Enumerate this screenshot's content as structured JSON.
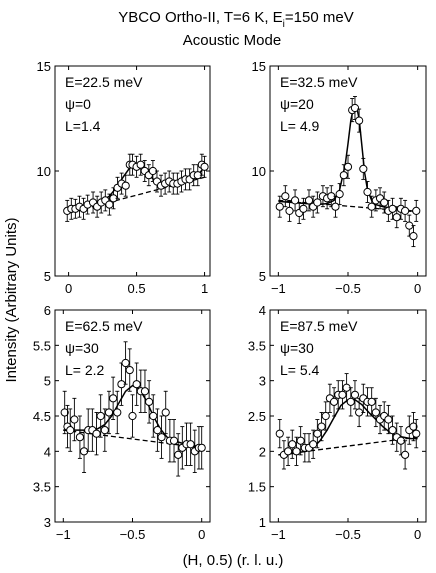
{
  "figure": {
    "title_line1_main": "YBCO Ortho-II, T=6 K, E",
    "title_line1_sub": "i",
    "title_line1_tail": "=150 meV",
    "title_line2": "Acoustic Mode",
    "ylabel": "Intensity (Arbitrary Units)",
    "xlabel": "(H, 0.5) (r. l. u.)"
  },
  "chart_data": [
    {
      "type": "scatter",
      "annotation": [
        "E=22.5 meV",
        "ψ=0",
        "L=1.4"
      ],
      "xlim": [
        -0.1,
        1.04
      ],
      "ylim": [
        5,
        15
      ],
      "xticks": [
        0,
        0.5,
        1
      ],
      "xtick_labels": [
        "0",
        "0.5",
        "1"
      ],
      "yticks": [
        5,
        10,
        15
      ],
      "ytick_labels": [
        "5",
        "10",
        "15"
      ],
      "x": [
        -0.01,
        0.02,
        0.05,
        0.08,
        0.11,
        0.14,
        0.18,
        0.21,
        0.24,
        0.27,
        0.3,
        0.33,
        0.36,
        0.39,
        0.42,
        0.45,
        0.47,
        0.5,
        0.53,
        0.56,
        0.59,
        0.62,
        0.65,
        0.68,
        0.71,
        0.74,
        0.77,
        0.8,
        0.83,
        0.86,
        0.89,
        0.92,
        0.95,
        0.98,
        1.0
      ],
      "y": [
        8.1,
        8.2,
        8.2,
        8.3,
        8.2,
        8.4,
        8.5,
        8.3,
        8.5,
        8.6,
        8.4,
        8.7,
        9.2,
        9.4,
        9.3,
        10.3,
        10.3,
        10.2,
        10.3,
        10.0,
        9.8,
        10.0,
        9.5,
        9.3,
        9.4,
        9.5,
        9.4,
        9.4,
        9.5,
        9.6,
        9.6,
        9.8,
        9.8,
        10.3,
        10.2
      ],
      "err": [
        0.5,
        0.5,
        0.45,
        0.5,
        0.5,
        0.45,
        0.5,
        0.5,
        0.5,
        0.5,
        0.5,
        0.5,
        0.5,
        0.5,
        0.5,
        0.5,
        0.5,
        0.5,
        0.5,
        0.5,
        0.5,
        0.5,
        0.5,
        0.5,
        0.5,
        0.5,
        0.5,
        0.5,
        0.5,
        0.5,
        0.5,
        0.5,
        0.5,
        0.5,
        0.5
      ],
      "fit": {
        "x": [
          0,
          0.05,
          0.1,
          0.15,
          0.2,
          0.25,
          0.3,
          0.35,
          0.4,
          0.45,
          0.5,
          0.55,
          0.6,
          0.65,
          0.7,
          0.75,
          0.8,
          0.85,
          0.9,
          0.95,
          1.0
        ],
        "y": [
          8.2,
          8.25,
          8.3,
          8.35,
          8.45,
          8.6,
          8.8,
          9.2,
          9.7,
          10.15,
          10.3,
          10.1,
          9.75,
          9.45,
          9.35,
          9.35,
          9.4,
          9.5,
          9.6,
          9.8,
          10.2
        ]
      },
      "background": {
        "x": [
          0,
          1.0
        ],
        "y": [
          8.0,
          9.7
        ]
      }
    },
    {
      "type": "scatter",
      "annotation": [
        "E=32.5 meV",
        "ψ=20",
        "L= 4.9"
      ],
      "xlim": [
        -1.06,
        0.06
      ],
      "ylim": [
        5,
        15
      ],
      "xticks": [
        -1,
        -0.5,
        0
      ],
      "xtick_labels": [
        "−1",
        "−0.5",
        "0"
      ],
      "yticks": [
        5,
        10,
        15
      ],
      "ytick_labels": [
        "5",
        "10",
        "15"
      ],
      "x": [
        -0.99,
        -0.95,
        -0.92,
        -0.88,
        -0.85,
        -0.82,
        -0.78,
        -0.75,
        -0.72,
        -0.68,
        -0.65,
        -0.62,
        -0.59,
        -0.56,
        -0.53,
        -0.5,
        -0.47,
        -0.45,
        -0.42,
        -0.39,
        -0.36,
        -0.33,
        -0.3,
        -0.27,
        -0.24,
        -0.21,
        -0.18,
        -0.15,
        -0.12,
        -0.09,
        -0.06,
        -0.03,
        -0.01
      ],
      "y": [
        8.3,
        8.8,
        8.1,
        8.6,
        8.0,
        8.2,
        8.6,
        8.3,
        8.5,
        8.8,
        8.7,
        8.8,
        8.3,
        8.9,
        9.8,
        10.2,
        12.9,
        13.0,
        12.4,
        10.1,
        9.0,
        8.3,
        8.6,
        8.7,
        8.5,
        8.1,
        8.2,
        7.8,
        8.2,
        8.1,
        7.4,
        6.9,
        8.1
      ],
      "err": [
        0.5,
        0.5,
        0.5,
        0.5,
        0.5,
        0.5,
        0.5,
        0.5,
        0.5,
        0.5,
        0.5,
        0.5,
        0.5,
        0.5,
        0.5,
        0.55,
        0.55,
        0.55,
        0.55,
        0.5,
        0.5,
        0.5,
        0.5,
        0.5,
        0.5,
        0.5,
        0.5,
        0.5,
        0.5,
        0.5,
        0.5,
        0.5,
        0.5
      ],
      "fit": {
        "x": [
          -1.0,
          -0.9,
          -0.8,
          -0.7,
          -0.65,
          -0.6,
          -0.56,
          -0.52,
          -0.5,
          -0.48,
          -0.46,
          -0.44,
          -0.42,
          -0.4,
          -0.38,
          -0.36,
          -0.33,
          -0.3,
          -0.25,
          -0.2,
          -0.1,
          0.0
        ],
        "y": [
          8.55,
          8.5,
          8.45,
          8.42,
          8.45,
          8.6,
          9.1,
          10.3,
          11.3,
          12.4,
          13.05,
          13.1,
          12.5,
          11.2,
          9.9,
          9.1,
          8.6,
          8.4,
          8.3,
          8.25,
          8.15,
          8.05
        ]
      },
      "background": {
        "x": [
          -1.0,
          0.0
        ],
        "y": [
          8.6,
          8.05
        ]
      }
    },
    {
      "type": "scatter",
      "annotation": [
        "E=62.5 meV",
        "ψ=30",
        "L= 2.2"
      ],
      "xlim": [
        -1.06,
        0.06
      ],
      "ylim": [
        3,
        6
      ],
      "xticks": [
        -1,
        -0.5,
        0
      ],
      "xtick_labels": [
        "−1",
        "−0.5",
        "0"
      ],
      "yticks": [
        3,
        3.5,
        4,
        4.5,
        5,
        5.5,
        6
      ],
      "ytick_labels": [
        "3",
        "3.5",
        "4",
        "4.5",
        "5",
        "5.5",
        "6"
      ],
      "x": [
        -0.99,
        -0.97,
        -0.95,
        -0.92,
        -0.88,
        -0.85,
        -0.82,
        -0.79,
        -0.76,
        -0.73,
        -0.7,
        -0.67,
        -0.64,
        -0.61,
        -0.58,
        -0.55,
        -0.52,
        -0.5,
        -0.47,
        -0.44,
        -0.41,
        -0.38,
        -0.35,
        -0.32,
        -0.29,
        -0.26,
        -0.23,
        -0.2,
        -0.17,
        -0.14,
        -0.11,
        -0.08,
        -0.05,
        -0.02,
        0.0
      ],
      "y": [
        4.55,
        4.35,
        4.3,
        4.45,
        4.2,
        4.0,
        4.3,
        4.3,
        4.25,
        4.5,
        4.3,
        4.55,
        4.75,
        4.55,
        4.95,
        5.25,
        5.15,
        4.5,
        4.95,
        4.85,
        4.85,
        4.7,
        4.5,
        4.3,
        4.2,
        4.55,
        4.15,
        4.15,
        3.95,
        4.05,
        4.1,
        4.1,
        4.0,
        4.05,
        4.05
      ],
      "err": [
        0.3,
        0.3,
        0.3,
        0.3,
        0.3,
        0.3,
        0.3,
        0.3,
        0.3,
        0.3,
        0.3,
        0.3,
        0.3,
        0.3,
        0.3,
        0.3,
        0.3,
        0.3,
        0.3,
        0.3,
        0.3,
        0.3,
        0.3,
        0.3,
        0.3,
        0.3,
        0.3,
        0.3,
        0.3,
        0.3,
        0.3,
        0.3,
        0.3,
        0.3,
        0.3
      ],
      "fit": {
        "x": [
          -1.0,
          -0.9,
          -0.8,
          -0.75,
          -0.7,
          -0.65,
          -0.6,
          -0.55,
          -0.5,
          -0.45,
          -0.4,
          -0.35,
          -0.3,
          -0.25,
          -0.2,
          -0.15,
          -0.1,
          -0.05,
          0.0
        ],
        "y": [
          4.3,
          4.3,
          4.3,
          4.32,
          4.38,
          4.5,
          4.68,
          4.85,
          4.93,
          4.88,
          4.72,
          4.5,
          4.32,
          4.2,
          4.15,
          4.12,
          4.1,
          4.08,
          4.07
        ]
      },
      "background": {
        "x": [
          -1.0,
          0.0
        ],
        "y": [
          4.3,
          4.05
        ]
      }
    },
    {
      "type": "scatter",
      "annotation": [
        "E=87.5 meV",
        "ψ=30",
        "L= 5.4"
      ],
      "xlim": [
        -1.06,
        0.06
      ],
      "ylim": [
        1,
        4
      ],
      "xticks": [
        -1,
        -0.5,
        0
      ],
      "xtick_labels": [
        "−1",
        "−0.5",
        "0"
      ],
      "yticks": [
        1,
        1.5,
        2,
        2.5,
        3,
        3.5,
        4
      ],
      "ytick_labels": [
        "1",
        "1.5",
        "2",
        "2.5",
        "3",
        "3.5",
        "4"
      ],
      "x": [
        -0.99,
        -0.96,
        -0.93,
        -0.9,
        -0.87,
        -0.84,
        -0.81,
        -0.78,
        -0.75,
        -0.72,
        -0.69,
        -0.66,
        -0.63,
        -0.6,
        -0.57,
        -0.54,
        -0.51,
        -0.48,
        -0.45,
        -0.42,
        -0.39,
        -0.36,
        -0.33,
        -0.3,
        -0.27,
        -0.24,
        -0.21,
        -0.18,
        -0.15,
        -0.12,
        -0.09,
        -0.06,
        -0.03,
        -0.01
      ],
      "y": [
        2.25,
        1.95,
        2.0,
        2.1,
        2.0,
        2.15,
        2.05,
        2.05,
        2.1,
        2.25,
        2.35,
        2.5,
        2.75,
        2.7,
        2.8,
        2.8,
        2.9,
        2.7,
        2.8,
        2.55,
        2.75,
        2.7,
        2.7,
        2.55,
        2.45,
        2.5,
        2.45,
        2.3,
        2.2,
        2.15,
        1.95,
        2.3,
        2.35,
        2.25
      ],
      "err": [
        0.2,
        0.2,
        0.2,
        0.2,
        0.2,
        0.2,
        0.2,
        0.2,
        0.2,
        0.2,
        0.2,
        0.2,
        0.2,
        0.2,
        0.2,
        0.2,
        0.2,
        0.2,
        0.2,
        0.2,
        0.2,
        0.2,
        0.2,
        0.2,
        0.2,
        0.2,
        0.2,
        0.2,
        0.2,
        0.2,
        0.2,
        0.2,
        0.2,
        0.2
      ],
      "fit": {
        "x": [
          -1.0,
          -0.9,
          -0.8,
          -0.75,
          -0.7,
          -0.65,
          -0.6,
          -0.55,
          -0.5,
          -0.45,
          -0.4,
          -0.35,
          -0.3,
          -0.25,
          -0.2,
          -0.15,
          -0.1,
          -0.05,
          0.0
        ],
        "y": [
          1.95,
          1.97,
          2.0,
          2.05,
          2.15,
          2.3,
          2.48,
          2.65,
          2.73,
          2.73,
          2.66,
          2.55,
          2.45,
          2.35,
          2.27,
          2.22,
          2.2,
          2.18,
          2.18
        ]
      },
      "background": {
        "x": [
          -1.0,
          0.0
        ],
        "y": [
          1.95,
          2.2
        ]
      }
    }
  ]
}
